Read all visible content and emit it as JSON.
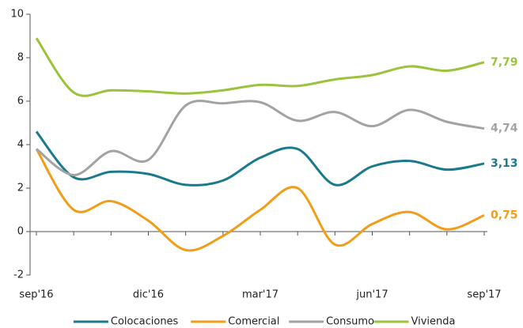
{
  "chart_data": {
    "type": "line",
    "categories": [
      "sep'16",
      null,
      null,
      "dic'16",
      null,
      null,
      "mar'17",
      null,
      null,
      "jun'17",
      null,
      null,
      "sep'17"
    ],
    "ylim": [
      -2,
      10
    ],
    "yticks": [
      -2,
      0,
      2,
      4,
      6,
      8,
      10
    ],
    "grid": false,
    "legend": "bottom",
    "series": [
      {
        "name": "Colocaciones",
        "color": "#1b7a8c",
        "values": [
          4.6,
          2.5,
          2.75,
          2.65,
          2.15,
          2.35,
          3.4,
          3.8,
          2.15,
          3.0,
          3.25,
          2.85,
          3.13
        ],
        "value_labels": [
          null,
          null,
          null,
          null,
          null,
          null,
          null,
          null,
          null,
          null,
          null,
          null,
          "3,13"
        ]
      },
      {
        "name": "Comercial",
        "color": "#f29d17",
        "values": [
          3.8,
          1.0,
          1.4,
          0.5,
          -0.85,
          -0.2,
          1.0,
          2.0,
          -0.6,
          0.35,
          0.9,
          0.1,
          0.75
        ],
        "value_labels": [
          null,
          null,
          null,
          null,
          null,
          null,
          null,
          null,
          null,
          null,
          null,
          null,
          "0,75"
        ]
      },
      {
        "name": "Consumo",
        "color": "#a3a3a3",
        "values": [
          3.8,
          2.6,
          3.7,
          3.3,
          5.8,
          5.9,
          5.95,
          5.1,
          5.5,
          4.85,
          5.6,
          5.05,
          4.74
        ],
        "value_labels": [
          null,
          null,
          null,
          null,
          null,
          null,
          null,
          null,
          null,
          null,
          null,
          null,
          "4,74"
        ]
      },
      {
        "name": "Vivienda",
        "color": "#9bc33c",
        "values": [
          8.9,
          6.4,
          6.5,
          6.45,
          6.35,
          6.5,
          6.75,
          6.7,
          7.0,
          7.2,
          7.6,
          7.4,
          7.79
        ],
        "value_labels": [
          null,
          null,
          null,
          null,
          null,
          null,
          null,
          null,
          null,
          null,
          null,
          null,
          "7,79"
        ]
      }
    ]
  }
}
